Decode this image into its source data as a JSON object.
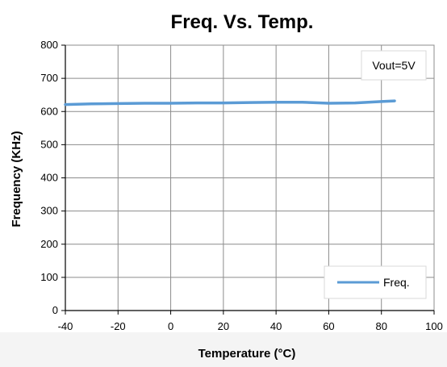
{
  "chart_data": {
    "type": "line",
    "title": "Freq. Vs. Temp.",
    "xlabel": "Temperature (°C)",
    "ylabel": "Frequency (KHz)",
    "xlim": [
      -40,
      100
    ],
    "ylim": [
      0,
      800
    ],
    "x_ticks": [
      -40,
      -20,
      0,
      20,
      40,
      60,
      80,
      100
    ],
    "y_ticks": [
      0,
      100,
      200,
      300,
      400,
      500,
      600,
      700,
      800
    ],
    "grid": true,
    "legend_position": "bottom-right",
    "annotation": "Vout=5V",
    "series": [
      {
        "name": "Freq.",
        "color": "#5b9bd5",
        "x": [
          -40,
          -30,
          -20,
          -10,
          0,
          10,
          20,
          30,
          40,
          50,
          60,
          70,
          80,
          85
        ],
        "y": [
          621,
          623,
          624,
          625,
          625,
          626,
          626,
          627,
          628,
          628,
          625,
          626,
          630,
          632
        ]
      }
    ]
  }
}
